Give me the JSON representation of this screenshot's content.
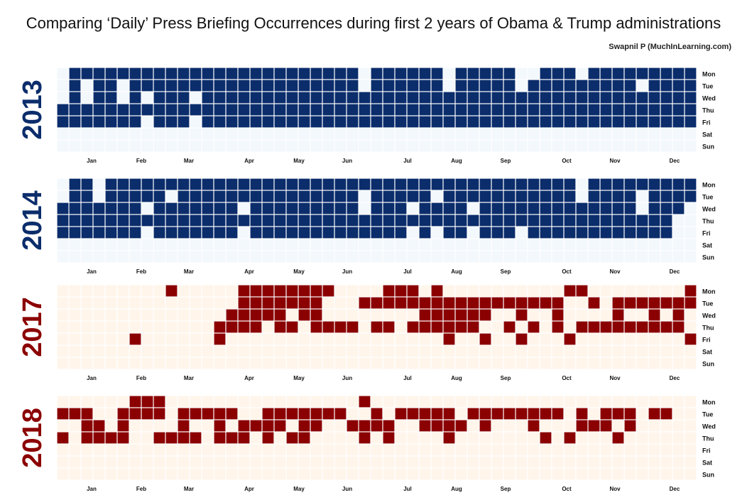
{
  "title": "Comparing ‘Daily’ Press Briefing Occurrences during first 2 years of Obama & Trump administrations",
  "author": "Swapnil P (MuchInLearning.com)",
  "colors": {
    "obama_fill": "#0b2d6b",
    "obama_empty": "#f3f8fd",
    "trump_fill": "#8b0000",
    "trump_empty": "#fff5eb"
  },
  "chart_data": {
    "type": "heatmap",
    "day_labels": [
      "Mon",
      "Tue",
      "Wed",
      "Thu",
      "Fri",
      "Sat",
      "Sun"
    ],
    "month_labels": [
      "Jan",
      "Feb",
      "Mar",
      "Apr",
      "May",
      "Jun",
      "Jul",
      "Aug",
      "Sep",
      "Oct",
      "Nov",
      "Dec"
    ],
    "value_meaning": "1 = press briefing held on that day, 0 = no briefing",
    "panels": [
      {
        "year": "2013",
        "palette": "obama",
        "first_weekday": 1,
        "weeks": [
          "0001100",
          "1111100",
          "1001100",
          "1111100",
          "1111100",
          "1001100",
          "1111100",
          "1101000",
          "1111100",
          "1111100",
          "1111100",
          "1101000",
          "1111100",
          "1111100",
          "1111100",
          "1111100",
          "1111100",
          "1111100",
          "1111100",
          "1111100",
          "1111100",
          "1111100",
          "1111100",
          "1111100",
          "1111100",
          "0011100",
          "1111100",
          "1111100",
          "1111100",
          "1111100",
          "1111100",
          "1111100",
          "0011100",
          "1111100",
          "1111100",
          "1111100",
          "1111100",
          "1111100",
          "0011100",
          "0111100",
          "1111100",
          "1111100",
          "1111100",
          "0111100",
          "1111100",
          "1111100",
          "1111100",
          "1111100",
          "1011100",
          "1111100",
          "1111100",
          "1111100",
          "1111100"
        ]
      },
      {
        "year": "2014",
        "palette": "obama",
        "first_weekday": 2,
        "weeks": [
          "0011100",
          "1111100",
          "1111100",
          "0011100",
          "1111100",
          "1111100",
          "1111100",
          "1101000",
          "1111100",
          "1011100",
          "1111100",
          "1111100",
          "1111100",
          "1111100",
          "1111100",
          "1101000",
          "1111100",
          "1111100",
          "1111100",
          "1111100",
          "1111100",
          "1111100",
          "1111100",
          "1111100",
          "1111100",
          "1001100",
          "1111100",
          "1111100",
          "1111100",
          "1101000",
          "1111100",
          "1011000",
          "1111100",
          "1111100",
          "1101000",
          "1111100",
          "1111100",
          "1111100",
          "1111000",
          "1111100",
          "1111100",
          "1111100",
          "1111100",
          "0011100",
          "1111100",
          "1111100",
          "1111100",
          "1111100",
          "1001100",
          "1111100",
          "1111100",
          "1110000",
          "1100000"
        ]
      },
      {
        "year": "2017",
        "palette": "trump",
        "first_weekday": 6,
        "weeks": [
          "0000000",
          "0000000",
          "0000000",
          "0000000",
          "0000000",
          "0000000",
          "0000100",
          "0000000",
          "0000000",
          "1000000",
          "0000000",
          "0000000",
          "0000000",
          "0001100",
          "0011000",
          "1111000",
          "1111000",
          "1110000",
          "1111000",
          "1101000",
          "1110000",
          "1111000",
          "1001000",
          "0001000",
          "0001000",
          "0100000",
          "0101000",
          "1101000",
          "1100000",
          "1101000",
          "0111000",
          "1111000",
          "0111100",
          "0111000",
          "0111000",
          "0110100",
          "0100000",
          "0101000",
          "0110100",
          "0101000",
          "0100000",
          "0111000",
          "1000100",
          "1001000",
          "0101000",
          "0001000",
          "0111000",
          "0101000",
          "0101000",
          "0111000",
          "0101000",
          "0111000",
          "1100100"
        ]
      },
      {
        "year": "2018",
        "palette": "trump",
        "first_weekday": 0,
        "weeks": [
          "0101000",
          "0100000",
          "0111000",
          "0011000",
          "0001000",
          "0111000",
          "1100000",
          "1100000",
          "1101000",
          "0001000",
          "0111000",
          "0101000",
          "0100000",
          "0111000",
          "0101000",
          "0011000",
          "0010000",
          "0111000",
          "0110000",
          "0101000",
          "0111000",
          "0110000",
          "0100000",
          "0100000",
          "0010000",
          "1011000",
          "0110000",
          "0011000",
          "0100000",
          "0100000",
          "0110000",
          "0110000",
          "0111000",
          "0010000",
          "0100000",
          "0110000",
          "0100000",
          "0100000",
          "0100000",
          "0110000",
          "0101000",
          "0100000",
          "0001000",
          "0110000",
          "0010000",
          "0110000",
          "0101000",
          "0110000",
          "0000000",
          "0100000",
          "0100000",
          "0000000",
          "0000000"
        ]
      }
    ]
  }
}
